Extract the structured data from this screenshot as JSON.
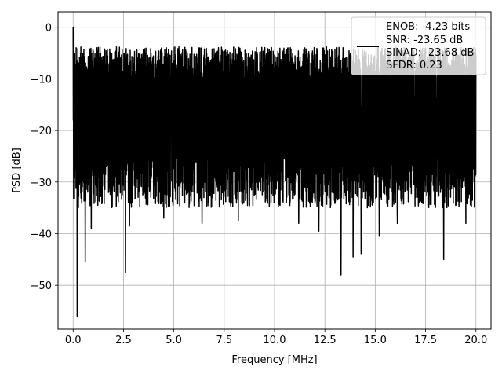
{
  "chart_data": {
    "type": "line",
    "title": "",
    "xlabel": "Frequency [MHz]",
    "ylabel": "PSD [dB]",
    "xlim": [
      -0.75,
      20.75
    ],
    "ylim": [
      -58.5,
      3
    ],
    "xticks": [
      0.0,
      2.5,
      5.0,
      7.5,
      10.0,
      12.5,
      15.0,
      17.5,
      20.0
    ],
    "xtick_labels": [
      "0.0",
      "2.5",
      "5.0",
      "7.5",
      "10.0",
      "12.5",
      "15.0",
      "17.5",
      "20.0"
    ],
    "yticks": [
      0,
      -10,
      -20,
      -30,
      -40,
      -50
    ],
    "ytick_labels": [
      "0",
      "−10",
      "−20",
      "−30",
      "−40",
      "−50"
    ],
    "grid": true,
    "legend_position": "top-right",
    "legend_entries": [
      "ENOB: -4.23 bits",
      "SNR: -23.65 dB",
      "SINAD: -23.68 dB",
      "SFDR: 0.23"
    ],
    "series": [
      {
        "color": "#000000",
        "x_range": [
          0,
          20
        ],
        "baseline_db": -16,
        "noise_upper_db": -8,
        "noise_lower_db": -30,
        "peak": {
          "x": 0.0,
          "y": 0
        },
        "notable_dips": [
          {
            "x": 0.2,
            "y": -56
          },
          {
            "x": 0.6,
            "y": -45.5
          },
          {
            "x": 0.9,
            "y": -39
          },
          {
            "x": 2.6,
            "y": -47.5
          },
          {
            "x": 2.8,
            "y": -38.5
          },
          {
            "x": 4.5,
            "y": -37
          },
          {
            "x": 6.4,
            "y": -38
          },
          {
            "x": 8.2,
            "y": -37.5
          },
          {
            "x": 11.2,
            "y": -38
          },
          {
            "x": 12.2,
            "y": -39.5
          },
          {
            "x": 13.3,
            "y": -48
          },
          {
            "x": 13.9,
            "y": -44.5
          },
          {
            "x": 14.3,
            "y": -44
          },
          {
            "x": 15.2,
            "y": -40.5
          },
          {
            "x": 16.1,
            "y": -38
          },
          {
            "x": 18.4,
            "y": -45
          },
          {
            "x": 19.5,
            "y": -38
          }
        ]
      }
    ]
  }
}
